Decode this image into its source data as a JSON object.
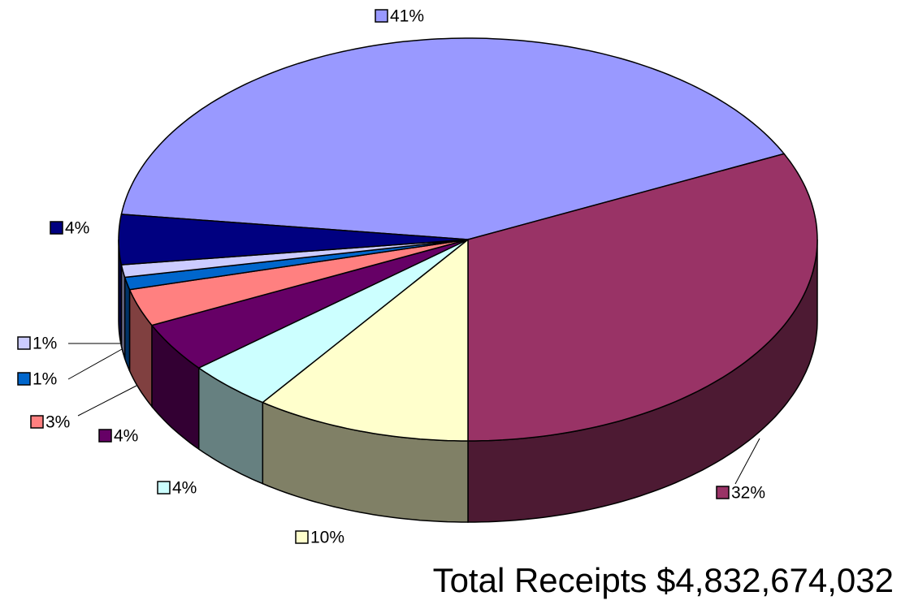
{
  "chart_data": {
    "type": "pie",
    "values": [
      41,
      32,
      10,
      4,
      4,
      3,
      1,
      1,
      4
    ],
    "value_labels": [
      "41%",
      "32%",
      "10%",
      "4%",
      "4%",
      "3%",
      "1%",
      "1%",
      "4%"
    ],
    "colors": [
      "#9999ff",
      "#993366",
      "#ffffcc",
      "#ccffff",
      "#660066",
      "#ff8080",
      "#0066cc",
      "#ccccff",
      "#000080"
    ],
    "annotation": "Total Receipts $4,832,674,032"
  }
}
